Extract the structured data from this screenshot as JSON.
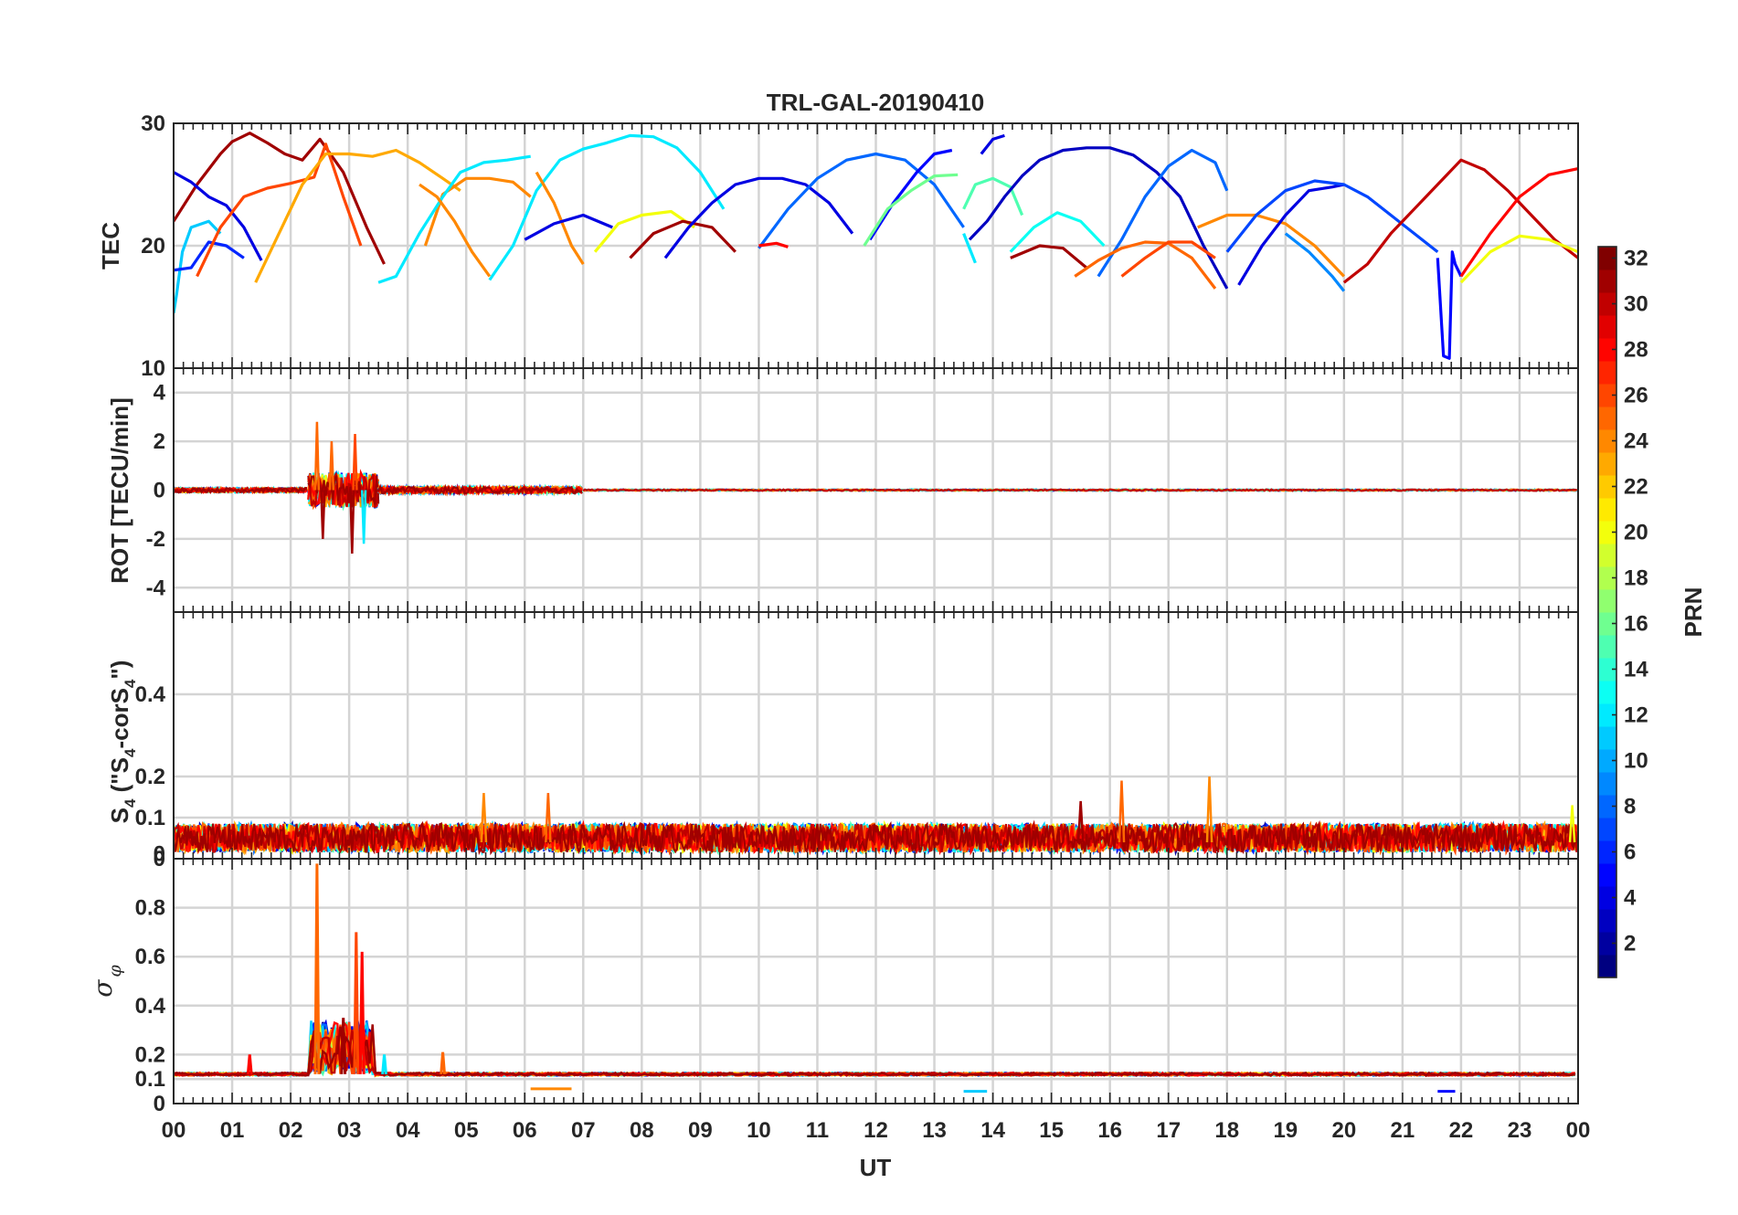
{
  "chart_data": {
    "type": "line",
    "title": "TRL-GAL-20190410",
    "xlabel": "UT",
    "x_ticks": [
      "00",
      "01",
      "02",
      "03",
      "04",
      "05",
      "06",
      "07",
      "08",
      "09",
      "10",
      "11",
      "12",
      "13",
      "14",
      "15",
      "16",
      "17",
      "18",
      "19",
      "20",
      "21",
      "22",
      "23",
      "00"
    ],
    "xlim": [
      0,
      24
    ],
    "panels": [
      {
        "id": "tec",
        "ylabel": "TEC",
        "ylim": [
          10,
          30
        ],
        "yticks": [
          "10",
          "20",
          "30"
        ],
        "series": [
          {
            "prn": 31,
            "x": [
              0.0,
              0.4,
              0.8,
              1.0,
              1.3,
              1.6,
              1.9,
              2.2,
              2.5,
              2.9,
              3.3,
              3.6
            ],
            "y": [
              22.0,
              25.0,
              27.5,
              28.5,
              29.2,
              28.4,
              27.5,
              27.0,
              28.7,
              26.0,
              21.5,
              18.5
            ]
          },
          {
            "prn": 4,
            "x": [
              0.0,
              0.3,
              0.6,
              0.9,
              1.2,
              1.5
            ],
            "y": [
              26.0,
              25.2,
              24.0,
              23.3,
              21.5,
              18.8
            ]
          },
          {
            "prn": 11,
            "x": [
              0.0,
              0.05,
              0.15,
              0.3,
              0.6,
              0.8
            ],
            "y": [
              14.5,
              16.0,
              19.5,
              21.5,
              22.0,
              21.0
            ]
          },
          {
            "prn": 6,
            "x": [
              0.0,
              0.3,
              0.6,
              0.9,
              1.2
            ],
            "y": [
              18.0,
              18.2,
              20.3,
              20.0,
              19.0
            ]
          },
          {
            "prn": 26,
            "x": [
              0.4,
              0.8,
              1.2,
              1.6,
              2.0,
              2.4,
              2.6,
              2.9,
              3.2
            ],
            "y": [
              17.5,
              21.5,
              24.0,
              24.7,
              25.1,
              25.6,
              28.3,
              24.0,
              20.0
            ]
          },
          {
            "prn": 23,
            "x": [
              1.4,
              1.8,
              2.2,
              2.6,
              3.0,
              3.4,
              3.8,
              4.2,
              4.6,
              4.9
            ],
            "y": [
              17.0,
              21.0,
              25.0,
              27.5,
              27.5,
              27.3,
              27.8,
              26.8,
              25.5,
              24.5
            ]
          },
          {
            "prn": 24,
            "x": [
              4.3,
              4.6,
              5.0,
              5.4,
              5.8,
              6.1
            ],
            "y": [
              20.0,
              24.2,
              25.5,
              25.5,
              25.2,
              24.0
            ]
          },
          {
            "prn": 12,
            "x": [
              3.5,
              3.8,
              4.2,
              4.6,
              4.9,
              5.3,
              5.7,
              6.1
            ],
            "y": [
              17.0,
              17.5,
              21.0,
              24.0,
              26.0,
              26.8,
              27.0,
              27.3
            ]
          },
          {
            "prn": 24,
            "x": [
              4.2,
              4.5,
              4.8,
              5.1,
              5.4
            ],
            "y": [
              25.0,
              24.0,
              22.0,
              19.5,
              17.5
            ]
          },
          {
            "prn": 12,
            "x": [
              5.4,
              5.8,
              6.2,
              6.6,
              7.0,
              7.4,
              7.8,
              8.2,
              8.6,
              9.0,
              9.4
            ],
            "y": [
              17.2,
              20.0,
              24.5,
              27.0,
              27.9,
              28.4,
              29.0,
              28.9,
              28.0,
              26.0,
              23.0
            ]
          },
          {
            "prn": 24,
            "x": [
              6.2,
              6.5,
              6.8,
              7.0
            ],
            "y": [
              26.0,
              23.5,
              20.0,
              18.5
            ]
          },
          {
            "prn": 4,
            "x": [
              6.0,
              6.5,
              7.0,
              7.5
            ],
            "y": [
              20.5,
              21.8,
              22.5,
              21.5
            ]
          },
          {
            "prn": 20,
            "x": [
              7.2,
              7.6,
              8.0,
              8.5,
              8.9
            ],
            "y": [
              19.5,
              21.8,
              22.5,
              22.8,
              21.5
            ]
          },
          {
            "prn": 31,
            "x": [
              7.8,
              8.2,
              8.7,
              9.2,
              9.6
            ],
            "y": [
              19.0,
              21.0,
              22.0,
              21.5,
              19.5
            ]
          },
          {
            "prn": 4,
            "x": [
              8.4,
              8.8,
              9.2,
              9.6,
              10.0,
              10.4,
              10.8,
              11.2,
              11.6
            ],
            "y": [
              19.0,
              21.5,
              23.5,
              25.0,
              25.5,
              25.5,
              25.0,
              23.5,
              21.0
            ]
          },
          {
            "prn": 8,
            "x": [
              10.0,
              10.5,
              11.0,
              11.5,
              12.0,
              12.5,
              13.0,
              13.5
            ],
            "y": [
              19.8,
              23.0,
              25.5,
              27.0,
              27.5,
              27.0,
              25.0,
              21.5
            ]
          },
          {
            "prn": 28,
            "x": [
              10.0,
              10.3,
              10.5
            ],
            "y": [
              20.0,
              20.2,
              19.9
            ]
          },
          {
            "prn": 5,
            "x": [
              11.9,
              12.3,
              12.7,
              13.0,
              13.3
            ],
            "y": [
              20.5,
              23.5,
              26.0,
              27.5,
              27.8
            ]
          },
          {
            "prn": 16,
            "x": [
              11.8,
              12.2,
              12.6,
              13.0,
              13.4
            ],
            "y": [
              20.0,
              23.0,
              24.5,
              25.7,
              25.8
            ]
          },
          {
            "prn": 15,
            "x": [
              13.5,
              13.7,
              14.0,
              14.3,
              14.5
            ],
            "y": [
              23.0,
              25.0,
              25.5,
              24.8,
              22.5
            ]
          },
          {
            "prn": 12,
            "x": [
              13.5,
              13.7
            ],
            "y": [
              21.0,
              18.6
            ]
          },
          {
            "prn": 3,
            "x": [
              13.6,
              13.9,
              14.2,
              14.5,
              14.8,
              15.2,
              15.6,
              16.0,
              16.4,
              16.8,
              17.2,
              17.6,
              18.0
            ],
            "y": [
              20.5,
              22.0,
              24.0,
              25.7,
              27.0,
              27.8,
              28.0,
              28.0,
              27.4,
              26.0,
              24.0,
              20.0,
              16.5
            ]
          },
          {
            "prn": 4,
            "x": [
              13.8,
              14.0,
              14.2
            ],
            "y": [
              27.5,
              28.7,
              29.0
            ]
          },
          {
            "prn": 13,
            "x": [
              14.3,
              14.7,
              15.1,
              15.5,
              15.9
            ],
            "y": [
              19.5,
              21.5,
              22.7,
              22.0,
              20.0
            ]
          },
          {
            "prn": 31,
            "x": [
              14.3,
              14.8,
              15.2,
              15.6
            ],
            "y": [
              19.0,
              20.0,
              19.8,
              18.2
            ]
          },
          {
            "prn": 8,
            "x": [
              15.8,
              16.2,
              16.6,
              17.0,
              17.4,
              17.8,
              18.0
            ],
            "y": [
              17.5,
              20.5,
              24.0,
              26.5,
              27.8,
              26.8,
              24.5
            ]
          },
          {
            "prn": 25,
            "x": [
              15.4,
              15.8,
              16.2,
              16.6,
              17.0,
              17.4,
              17.8
            ],
            "y": [
              17.5,
              18.8,
              19.8,
              20.3,
              20.2,
              19.0,
              16.5
            ]
          },
          {
            "prn": 26,
            "x": [
              16.2,
              16.6,
              17.0,
              17.4,
              17.8
            ],
            "y": [
              17.5,
              19.0,
              20.3,
              20.3,
              19.0
            ]
          },
          {
            "prn": 24,
            "x": [
              17.5,
              18.0,
              18.5,
              19.0,
              19.5,
              20.0
            ],
            "y": [
              21.5,
              22.5,
              22.5,
              21.8,
              20.0,
              17.5
            ]
          },
          {
            "prn": 4,
            "x": [
              18.2,
              18.6,
              19.0,
              19.4,
              19.8,
              20.0
            ],
            "y": [
              16.8,
              20.0,
              22.5,
              24.5,
              24.8,
              25.0
            ]
          },
          {
            "prn": 7,
            "x": [
              18.0,
              18.5,
              19.0,
              19.5,
              20.0,
              20.4,
              20.8,
              21.2,
              21.6
            ],
            "y": [
              19.5,
              22.5,
              24.5,
              25.3,
              25.0,
              24.0,
              22.5,
              21.0,
              19.5
            ]
          },
          {
            "prn": 9,
            "x": [
              19.0,
              19.4,
              19.8,
              20.0
            ],
            "y": [
              21.0,
              19.5,
              17.5,
              16.3
            ]
          },
          {
            "prn": 30,
            "x": [
              20.0,
              20.4,
              20.8,
              21.2,
              21.6,
              22.0,
              22.4,
              22.8,
              23.2,
              23.6,
              24.0
            ],
            "y": [
              17.0,
              18.5,
              21.0,
              23.0,
              25.0,
              27.0,
              26.2,
              24.5,
              22.5,
              20.5,
              19.0
            ]
          },
          {
            "prn": 5,
            "x": [
              21.6,
              21.7,
              21.8,
              21.85,
              21.9,
              22.0
            ],
            "y": [
              19.0,
              11.0,
              10.8,
              19.5,
              18.5,
              17.5
            ]
          },
          {
            "prn": 28,
            "x": [
              22.0,
              22.5,
              23.0,
              23.5,
              24.0
            ],
            "y": [
              17.5,
              21.0,
              24.0,
              25.8,
              26.3
            ]
          },
          {
            "prn": 20,
            "x": [
              22.0,
              22.5,
              23.0,
              23.5,
              24.0
            ],
            "y": [
              17.0,
              19.5,
              20.8,
              20.5,
              19.5
            ]
          }
        ]
      },
      {
        "id": "rot",
        "ylabel": "ROT [TECU/min]",
        "ylim": [
          -5,
          5
        ],
        "yticks": [
          "-4",
          "-2",
          "0",
          "2",
          "4"
        ],
        "noise_profile": [
          {
            "from": 0.0,
            "to": 2.3,
            "amp": 0.3
          },
          {
            "from": 2.3,
            "to": 3.5,
            "amp": 2.4
          },
          {
            "from": 3.5,
            "to": 7.0,
            "amp": 0.45
          },
          {
            "from": 7.0,
            "to": 24.0,
            "amp": 0.1
          }
        ],
        "spikes": [
          {
            "x": 2.45,
            "y": 2.8,
            "prn": 25
          },
          {
            "x": 2.55,
            "y": -2.0,
            "prn": 31
          },
          {
            "x": 2.7,
            "y": 2.0,
            "prn": 25
          },
          {
            "x": 3.05,
            "y": -2.6,
            "prn": 31
          },
          {
            "x": 3.1,
            "y": 2.3,
            "prn": 26
          },
          {
            "x": 3.25,
            "y": -2.2,
            "prn": 12
          }
        ]
      },
      {
        "id": "s4",
        "ylabel": "S4 (\"S4-corS4\")",
        "ylim": [
          0,
          0.6
        ],
        "yticks": [
          "0",
          "0",
          "0.1",
          "0.2",
          "0.4"
        ],
        "baseline": 0.04,
        "spikes": [
          {
            "x": 5.3,
            "y": 0.16,
            "prn": 24
          },
          {
            "x": 6.4,
            "y": 0.16,
            "prn": 25
          },
          {
            "x": 16.2,
            "y": 0.19,
            "prn": 25
          },
          {
            "x": 17.7,
            "y": 0.2,
            "prn": 24
          },
          {
            "x": 15.5,
            "y": 0.14,
            "prn": 31
          },
          {
            "x": 23.9,
            "y": 0.13,
            "prn": 20
          }
        ]
      },
      {
        "id": "sigma",
        "ylabel": "σφ",
        "ylim": [
          0,
          1.0
        ],
        "yticks": [
          "0",
          "0.1",
          "0.2",
          "0.4",
          "0.6",
          "0.8"
        ],
        "baseline": 0.12,
        "spikes": [
          {
            "x": 2.45,
            "y": 0.98,
            "prn": 25
          },
          {
            "x": 3.12,
            "y": 0.7,
            "prn": 26
          },
          {
            "x": 3.22,
            "y": 0.62,
            "prn": 28
          },
          {
            "x": 2.9,
            "y": 0.35,
            "prn": 31
          },
          {
            "x": 3.6,
            "y": 0.2,
            "prn": 12
          },
          {
            "x": 4.6,
            "y": 0.21,
            "prn": 25
          },
          {
            "x": 1.3,
            "y": 0.2,
            "prn": 28
          }
        ],
        "dips": [
          {
            "from": 6.1,
            "to": 6.8,
            "y": 0.06,
            "prn": 24
          },
          {
            "from": 13.5,
            "to": 13.9,
            "y": 0.05,
            "prn": 11
          },
          {
            "from": 21.6,
            "to": 21.9,
            "y": 0.05,
            "prn": 5
          }
        ]
      }
    ],
    "colorbar": {
      "label": "PRN",
      "range": [
        1,
        32
      ],
      "ticks": [
        "2",
        "4",
        "6",
        "8",
        "10",
        "12",
        "14",
        "16",
        "18",
        "20",
        "22",
        "24",
        "26",
        "28",
        "30",
        "32"
      ],
      "colormap": "jet"
    }
  }
}
